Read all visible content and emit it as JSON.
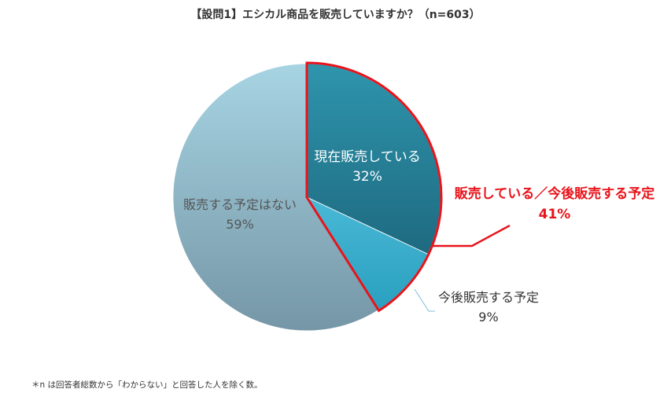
{
  "title": "【設問1】エシカル商品を販売していますか？（n=603）",
  "footnote": "＊n は回答者総数から「わからない」と回答した人を除く数。",
  "chart_data": {
    "type": "pie",
    "start_angle_deg": 0,
    "direction": "clockwise",
    "slices": [
      {
        "name": "現在販売している",
        "value": 32,
        "label": "32%",
        "color_top": "#2e95ad",
        "color_bottom": "#1e6a80",
        "label_color": "#ffffff"
      },
      {
        "name": "今後販売する予定",
        "value": 9,
        "label": "9%",
        "color_top": "#49b9d6",
        "color_bottom": "#2a9fbf",
        "label_color": "#333333"
      },
      {
        "name": "販売する予定はない",
        "value": 59,
        "label": "59%",
        "color_top": "#a7d4e3",
        "color_bottom": "#7596a6",
        "label_color": "#555555"
      }
    ],
    "highlight": {
      "name": "販売している／今後販売する予定",
      "value": 41,
      "label": "41%",
      "color": "#e8141b"
    }
  }
}
